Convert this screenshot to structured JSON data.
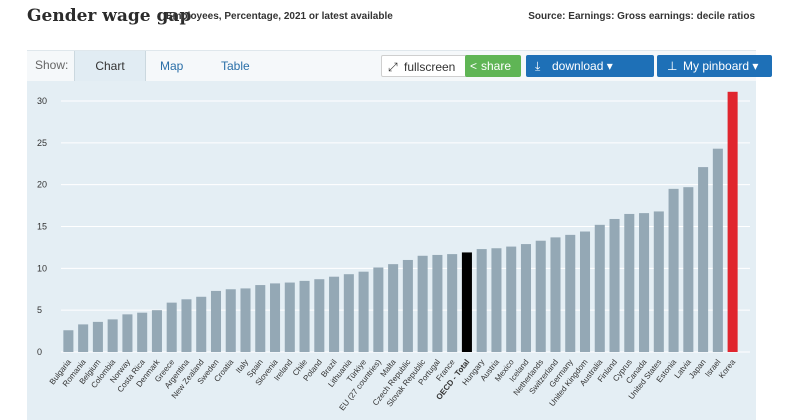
{
  "header": {
    "title": "Gender wage gap",
    "subtitle": "Employees, Percentage, 2021 or latest available",
    "source": "Source: Earnings: Gross earnings: decile ratios"
  },
  "toolbar": {
    "show_label": "Show:",
    "tabs": [
      {
        "label": "Chart",
        "active": true
      },
      {
        "label": "Map",
        "active": false
      },
      {
        "label": "Table",
        "active": false
      }
    ],
    "fullscreen_label": "fullscreen",
    "share_label": "share",
    "download_label": "download ▾",
    "pinboard_label": "My pinboard ▾"
  },
  "colors": {
    "bar": "#94a8b5",
    "oecd": "#000000",
    "highlight": "#e0252e",
    "plot_bg": "#e4eef4",
    "grid": "#ffffff",
    "share": "#5fb555",
    "primary": "#1e70b7"
  },
  "chart_data": {
    "type": "bar",
    "title": "Gender wage gap",
    "xlabel": "",
    "ylabel": "",
    "ylim": [
      0,
      32
    ],
    "yticks": [
      0,
      5,
      10,
      15,
      20,
      25,
      30
    ],
    "grid": true,
    "categories": [
      "Bulgaria",
      "Romania",
      "Belgium",
      "Colombia",
      "Norway",
      "Costa Rica",
      "Denmark",
      "Greece",
      "Argentina",
      "New Zealand",
      "Sweden",
      "Croatia",
      "Italy",
      "Spain",
      "Slovenia",
      "Ireland",
      "Chile",
      "Poland",
      "Brazil",
      "Lithuania",
      "Türkiye",
      "EU (27 countries)",
      "Malta",
      "Czech Republic",
      "Slovak Republic",
      "Portugal",
      "France",
      "OECD - Total",
      "Hungary",
      "Austria",
      "Mexico",
      "Iceland",
      "Netherlands",
      "Switzerland",
      "Germany",
      "United Kingdom",
      "Australia",
      "Finland",
      "Cyprus",
      "Canada",
      "United States",
      "Estonia",
      "Latvia",
      "Japan",
      "Israel",
      "Korea"
    ],
    "values": [
      2.6,
      3.3,
      3.6,
      3.9,
      4.5,
      4.7,
      5.0,
      5.9,
      6.3,
      6.6,
      7.3,
      7.5,
      7.6,
      8.0,
      8.2,
      8.3,
      8.5,
      8.7,
      9.0,
      9.3,
      9.6,
      10.1,
      10.5,
      11.0,
      11.5,
      11.6,
      11.7,
      11.9,
      12.3,
      12.4,
      12.6,
      12.9,
      13.3,
      13.7,
      14.0,
      14.4,
      15.2,
      15.9,
      16.5,
      16.6,
      16.8,
      19.5,
      19.7,
      22.1,
      24.3,
      31.1
    ],
    "special": {
      "OECD - Total": "oecd",
      "Korea": "highlight"
    }
  }
}
